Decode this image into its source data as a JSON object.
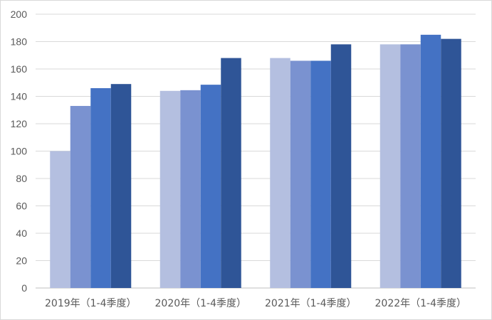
{
  "chart_data": {
    "type": "bar",
    "categories": [
      "2019年（1-4季度）",
      "2020年（1-4季度）",
      "2021年（1-4季度）",
      "2022年（1-4季度）"
    ],
    "series": [
      {
        "values": [
          100,
          144,
          168,
          178
        ],
        "color": "#b4bfe0"
      },
      {
        "values": [
          133,
          144.5,
          166,
          178
        ],
        "color": "#7a92d0"
      },
      {
        "values": [
          146,
          148.5,
          166,
          185
        ],
        "color": "#4472c4"
      },
      {
        "values": [
          149,
          168,
          178,
          182
        ],
        "color": "#2f5597"
      }
    ],
    "ylim": [
      0,
      200
    ],
    "yticks": [
      0,
      20,
      40,
      60,
      80,
      100,
      120,
      140,
      160,
      180,
      200
    ],
    "grid": true,
    "legend": "none"
  }
}
